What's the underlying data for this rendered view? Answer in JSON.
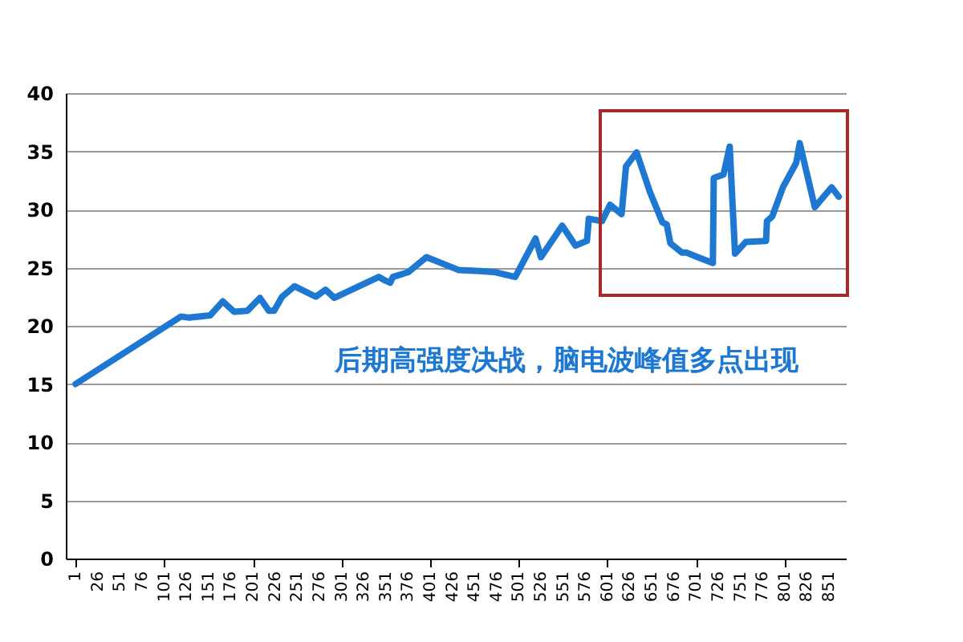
{
  "chart_data": {
    "type": "line",
    "annotations": [
      "后期高强度决战，脑电波峰值多点出现"
    ],
    "series": [
      {
        "color": "#1e78d2",
        "x": [
          1,
          120,
          129,
          153,
          167,
          180,
          195,
          209,
          219,
          225,
          234,
          248,
          272,
          283,
          293,
          343,
          350,
          356,
          359,
          376,
          397,
          433,
          457,
          475,
          497,
          520,
          526,
          550,
          565,
          578,
          580,
          595,
          604,
          617,
          622,
          634,
          649,
          663,
          668,
          672,
          685,
          690,
          703,
          720,
          721,
          732,
          739,
          745,
          757,
          780,
          781,
          787,
          799,
          814,
          818,
          835,
          854,
          862
        ],
        "values": [
          15.0,
          20.8,
          20.7,
          20.9,
          22.1,
          21.2,
          21.3,
          22.4,
          21.3,
          21.3,
          22.5,
          23.4,
          22.5,
          23.1,
          22.4,
          24.2,
          23.9,
          23.7,
          24.2,
          24.6,
          25.9,
          24.8,
          24.7,
          24.6,
          24.2,
          27.5,
          25.9,
          28.6,
          26.9,
          27.3,
          29.2,
          29.0,
          30.4,
          29.6,
          33.7,
          34.9,
          31.5,
          28.9,
          28.7,
          27.1,
          26.3,
          26.3,
          25.9,
          25.4,
          32.7,
          33.0,
          35.4,
          26.2,
          27.2,
          27.3,
          29.0,
          29.4,
          31.9,
          34.0,
          35.7,
          30.2,
          31.9,
          31.1
        ]
      }
    ],
    "xlim": [
      -10,
      870
    ],
    "xticks": [
      1,
      26,
      51,
      76,
      101,
      126,
      151,
      176,
      201,
      226,
      251,
      276,
      301,
      326,
      351,
      376,
      401,
      426,
      451,
      476,
      501,
      526,
      551,
      576,
      601,
      626,
      651,
      676,
      701,
      726,
      751,
      776,
      801,
      826,
      851
    ],
    "ylim": [
      0,
      40
    ],
    "yticks": [
      0,
      5,
      10,
      15,
      20,
      25,
      30,
      35,
      40
    ],
    "grid": "y",
    "marker": "none",
    "line_style": "solid"
  }
}
